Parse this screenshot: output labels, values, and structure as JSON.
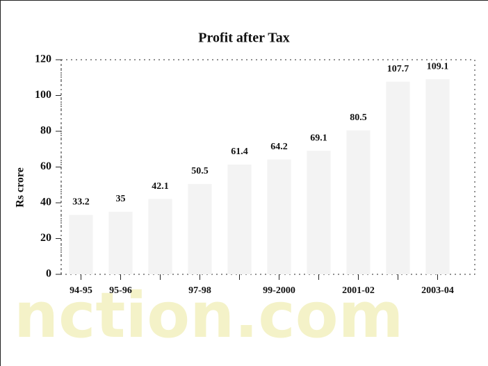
{
  "chart_data": {
    "type": "bar",
    "title": "Profit after Tax",
    "y_label": "Rs crore",
    "categories": [
      "94-95",
      "95-96",
      null,
      "97-98",
      null,
      "99-2000",
      null,
      "2001-02",
      null,
      "2003-04"
    ],
    "values": [
      33.2,
      35,
      42.1,
      50.5,
      61.4,
      64.2,
      69.1,
      80.5,
      107.7,
      109.1
    ],
    "color": "#f3f3f3",
    "ylim": [
      0,
      120
    ],
    "yticks": [
      0,
      20,
      40,
      60,
      80,
      100,
      120
    ],
    "grid": false,
    "watermark": "nction.com"
  }
}
